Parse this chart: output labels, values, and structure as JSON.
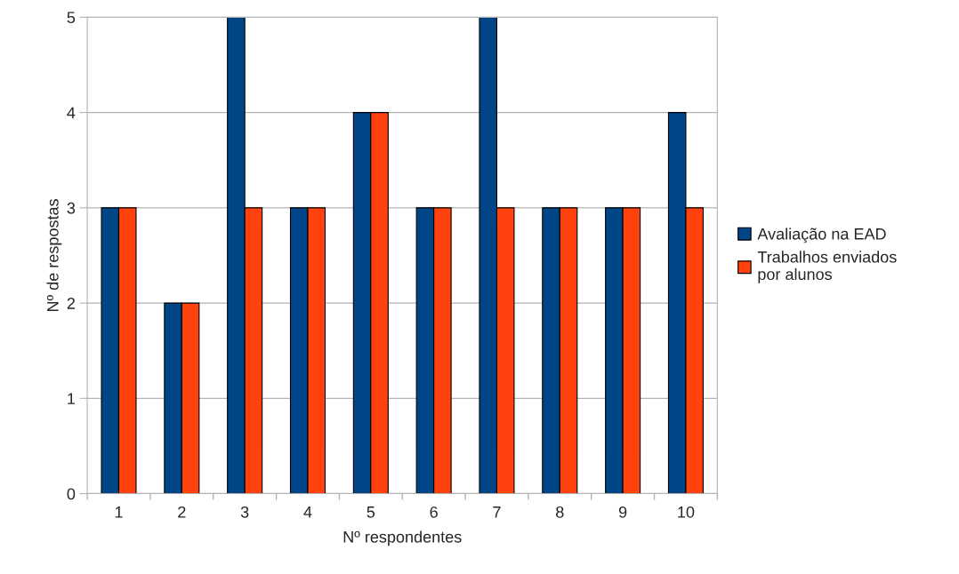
{
  "chart_data": {
    "type": "bar",
    "xlabel": "Nº respondentes",
    "ylabel": "Nº de respostas",
    "categories": [
      "1",
      "2",
      "3",
      "4",
      "5",
      "6",
      "7",
      "8",
      "9",
      "10"
    ],
    "series": [
      {
        "name": "Avaliação na EAD",
        "color": "#004586",
        "values": [
          3,
          2,
          5,
          3,
          4,
          3,
          5,
          3,
          3,
          4
        ]
      },
      {
        "name": "Trabalhos enviados\npor alunos",
        "color": "#ff420e",
        "values": [
          3,
          2,
          3,
          3,
          4,
          3,
          3,
          3,
          3,
          3
        ]
      }
    ],
    "ylim": [
      0,
      5
    ],
    "yticks": [
      0,
      1,
      2,
      3,
      4,
      5
    ],
    "grid": "y",
    "legend": "right"
  }
}
